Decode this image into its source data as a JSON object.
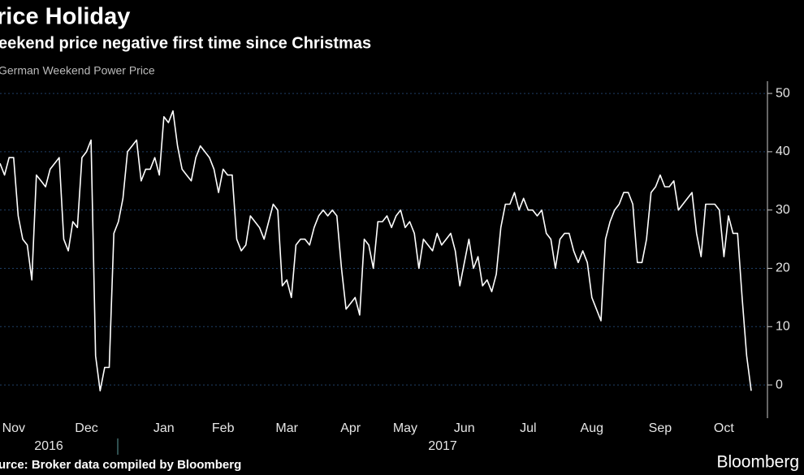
{
  "chart_data": {
    "type": "line",
    "title": "rice Holiday",
    "subtitle": "eekend price negative first time since Christmas",
    "series": [
      {
        "name": "German Weekend Power Price",
        "color": "#ffffff",
        "values": [
          38,
          36,
          39,
          39,
          29,
          25,
          24,
          18,
          36,
          35,
          34,
          37,
          38,
          39,
          25,
          23,
          28,
          27,
          39,
          40,
          42,
          5,
          -1,
          3,
          3,
          26,
          28,
          32,
          40,
          41,
          42,
          35,
          37,
          37,
          39,
          36,
          46,
          45,
          47,
          41,
          37,
          36,
          35,
          39,
          41,
          40,
          39,
          37,
          33,
          37,
          36,
          36,
          25,
          23,
          24,
          29,
          28,
          27,
          25,
          28,
          31,
          30,
          17,
          18,
          15,
          24,
          25,
          25,
          24,
          27,
          29,
          30,
          29,
          30,
          29,
          20,
          13,
          14,
          15,
          12,
          25,
          24,
          20,
          28,
          28,
          29,
          27,
          29,
          30,
          27,
          28,
          26,
          20,
          25,
          24,
          23,
          26,
          24,
          25,
          26,
          23,
          17,
          21,
          25,
          20,
          22,
          17,
          18,
          16,
          19,
          27,
          31,
          31,
          33,
          30,
          32,
          30,
          30,
          29,
          30,
          26,
          25,
          20,
          25,
          26,
          26,
          23,
          21,
          23,
          21,
          15,
          13,
          11,
          25,
          28,
          30,
          31,
          33,
          33,
          31,
          21,
          21,
          25,
          33,
          34,
          36,
          34,
          34,
          35,
          30,
          31,
          32,
          33,
          26,
          22,
          31,
          31,
          31,
          30,
          22,
          29,
          26,
          26,
          15,
          5,
          -1
        ]
      }
    ],
    "xticks": [
      {
        "value": 3,
        "label": "Nov"
      },
      {
        "value": 19,
        "label": "Dec"
      },
      {
        "value": 36,
        "label": "Jan"
      },
      {
        "value": 49,
        "label": "Feb"
      },
      {
        "value": 63,
        "label": "Mar"
      },
      {
        "value": 77,
        "label": "Apr"
      },
      {
        "value": 89,
        "label": "May"
      },
      {
        "value": 102,
        "label": "Jun"
      },
      {
        "value": 116,
        "label": "Jul"
      },
      {
        "value": 130,
        "label": "Aug"
      },
      {
        "value": 145,
        "label": "Sep"
      },
      {
        "value": 159,
        "label": "Oct"
      }
    ],
    "year_labels": [
      "2016",
      "2017"
    ],
    "ylim": [
      -5.7,
      52.1
    ],
    "yticks": [
      0,
      10,
      20,
      30,
      40,
      50
    ],
    "grid": true,
    "source": "urce: Broker data compiled by Bloomberg",
    "brand": "Bloomberg"
  }
}
